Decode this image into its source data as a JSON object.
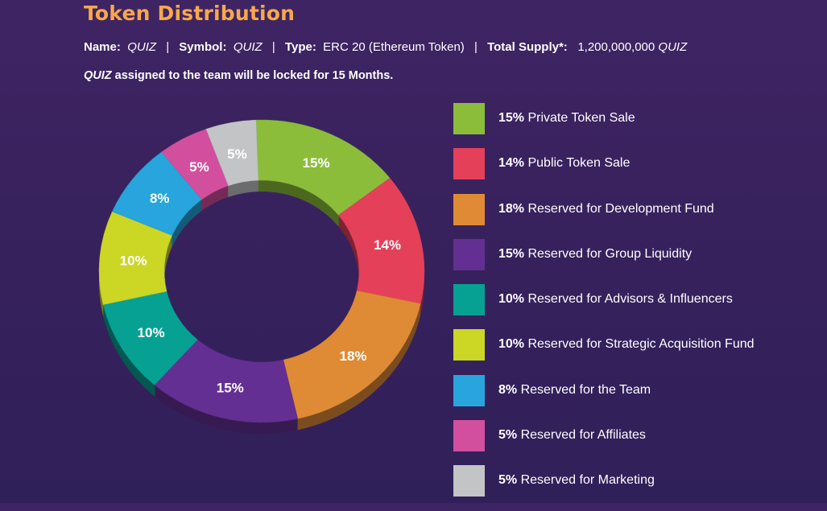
{
  "header": {
    "title": "Token Distribution",
    "name_label": "Name:",
    "name_value": "QUIZ",
    "symbol_label": "Symbol:",
    "symbol_value": "QUIZ",
    "type_label": "Type:",
    "type_value": "ERC 20 (Ethereum Token)",
    "supply_label": "Total Supply*:",
    "supply_value": "1,200,000,000",
    "supply_unit": "QUIZ",
    "separator": "|",
    "note_token": "QUIZ",
    "note_text": "assigned to the team will be locked for 15 Months."
  },
  "chart_data": {
    "type": "pie",
    "donut": true,
    "title": "Token Distribution",
    "legend_placement": "right",
    "categories": [
      "Private Token Sale",
      "Public Token Sale",
      "Reserved for Development Fund",
      "Reserved for Group Liquidity",
      "Reserved for Advisors & Influencers",
      "Reserved for Strategic Acquisition Fund",
      "Reserved for the Team",
      "Reserved for Affiliates",
      "Reserved for Marketing"
    ],
    "values": [
      15,
      14,
      18,
      15,
      10,
      10,
      8,
      5,
      5
    ],
    "labels": [
      "15%",
      "14%",
      "18%",
      "15%",
      "10%",
      "10%",
      "8%",
      "5%",
      "5%"
    ],
    "colors": [
      "#8bbd3b",
      "#e4405a",
      "#df8b36",
      "#642f93",
      "#06a193",
      "#ccd624",
      "#27a5dc",
      "#d24f9e",
      "#c2c4c6"
    ]
  }
}
